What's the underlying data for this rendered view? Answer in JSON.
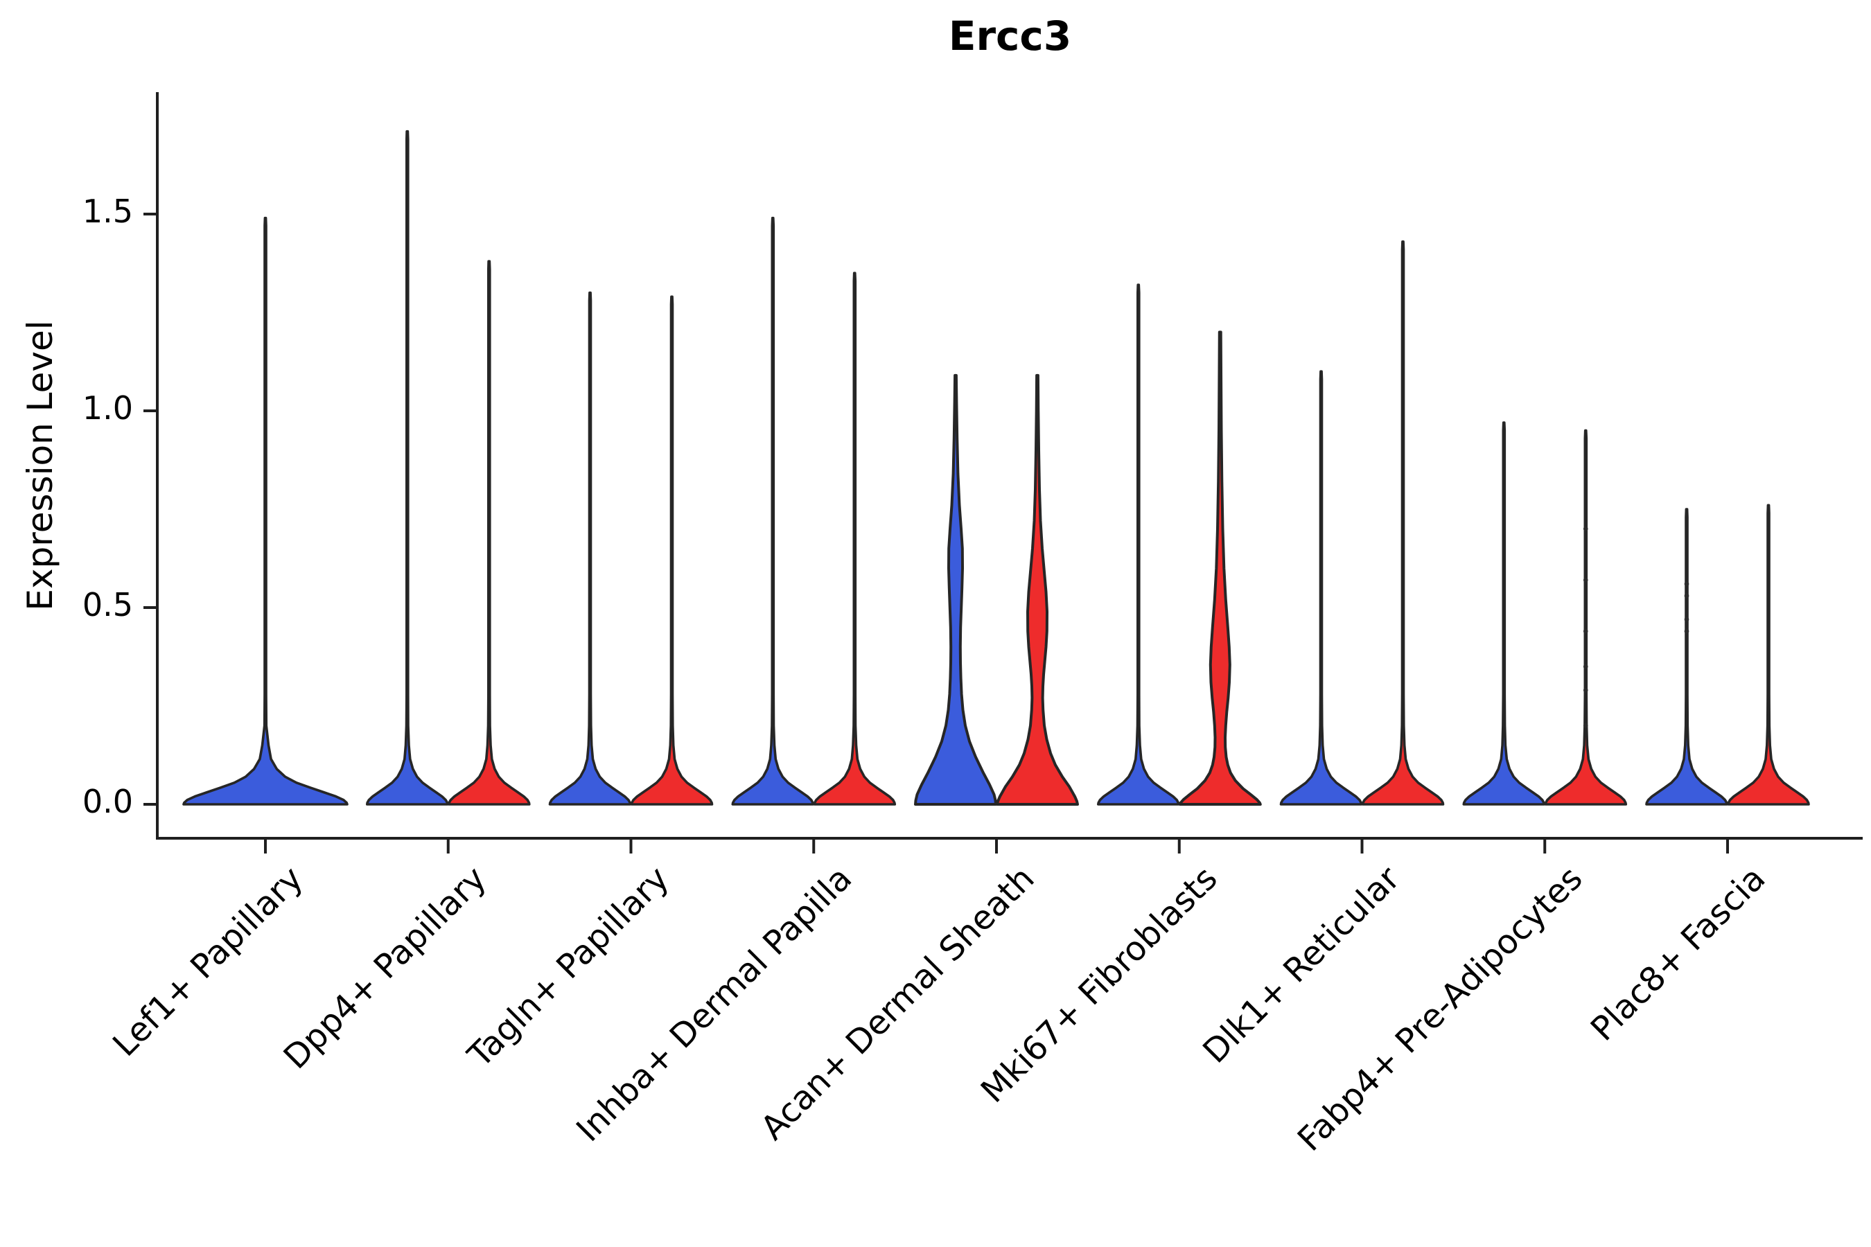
{
  "chart_data": {
    "type": "violin",
    "title": "Ercc3",
    "ylabel": "Expression Level",
    "xlabel": "",
    "grid": false,
    "legend": "none",
    "ylim": [
      -0.09,
      1.88
    ],
    "y_ticks": [
      {
        "label": "1.5",
        "value": 1.5
      },
      {
        "label": "1.0",
        "value": 1.0
      },
      {
        "label": "0.5",
        "value": 0.5
      },
      {
        "label": "0.0",
        "value": 0.0
      }
    ],
    "colors": {
      "split_left": "#3B5CDC",
      "split_right": "#EE2C2C",
      "outline": "#262626",
      "spike": "#2d2d2d",
      "axis": "#1f1f1f"
    },
    "categories": [
      {
        "label": "Lef1+ Papillary",
        "violins": [
          {
            "split": "full",
            "color": "#3B5CDC",
            "shape": "spike",
            "max_expression": 1.49,
            "base_halfwidth": 118
          }
        ]
      },
      {
        "label": "Dpp4+ Papillary",
        "violins": [
          {
            "split": "left",
            "color": "#3B5CDC",
            "shape": "spike",
            "max_expression": 1.71,
            "base_halfwidth": 58
          },
          {
            "split": "right",
            "color": "#EE2C2C",
            "shape": "spike",
            "max_expression": 1.38,
            "base_halfwidth": 58
          }
        ]
      },
      {
        "label": "Tagln+ Papillary",
        "violins": [
          {
            "split": "left",
            "color": "#3B5CDC",
            "shape": "spike",
            "max_expression": 1.3,
            "base_halfwidth": 58
          },
          {
            "split": "right",
            "color": "#EE2C2C",
            "shape": "spike",
            "max_expression": 1.29,
            "base_halfwidth": 58
          }
        ]
      },
      {
        "label": "Inhba+ Dermal Papilla",
        "violins": [
          {
            "split": "left",
            "color": "#3B5CDC",
            "shape": "spike",
            "max_expression": 1.49,
            "base_halfwidth": 58
          },
          {
            "split": "right",
            "color": "#EE2C2C",
            "shape": "spike",
            "max_expression": 1.35,
            "base_halfwidth": 58
          }
        ]
      },
      {
        "label": "Acan+ Dermal Sheath",
        "violins": [
          {
            "split": "left",
            "color": "#3B5CDC",
            "shape": "density",
            "max_expression": 1.09,
            "base_halfwidth": 58,
            "profile": [
              [
                1.09,
                0.9
              ],
              [
                1.02,
                1.4
              ],
              [
                0.93,
                2.2
              ],
              [
                0.84,
                3.4
              ],
              [
                0.76,
                5.5
              ],
              [
                0.7,
                8.0
              ],
              [
                0.65,
                9.8
              ],
              [
                0.6,
                10.0
              ],
              [
                0.55,
                9.2
              ],
              [
                0.5,
                8.2
              ],
              [
                0.45,
                7.2
              ],
              [
                0.4,
                6.8
              ],
              [
                0.36,
                7.0
              ],
              [
                0.32,
                7.6
              ],
              [
                0.28,
                8.6
              ],
              [
                0.24,
                10.5
              ],
              [
                0.2,
                14.0
              ],
              [
                0.16,
                20.0
              ],
              [
                0.12,
                29.0
              ],
              [
                0.08,
                40.0
              ],
              [
                0.05,
                49.0
              ],
              [
                0.025,
                55.5
              ],
              [
                0.01,
                57.5
              ],
              [
                0,
                58.0
              ]
            ]
          },
          {
            "split": "right",
            "color": "#EE2C2C",
            "shape": "density",
            "max_expression": 1.09,
            "base_halfwidth": 58,
            "profile": [
              [
                1.09,
                0.9
              ],
              [
                1.0,
                1.3
              ],
              [
                0.9,
                2.0
              ],
              [
                0.8,
                3.0
              ],
              [
                0.72,
                4.5
              ],
              [
                0.65,
                7.0
              ],
              [
                0.59,
                10.0
              ],
              [
                0.54,
                12.5
              ],
              [
                0.49,
                14.0
              ],
              [
                0.44,
                13.8
              ],
              [
                0.4,
                12.5
              ],
              [
                0.36,
                10.5
              ],
              [
                0.33,
                9.0
              ],
              [
                0.3,
                8.0
              ],
              [
                0.27,
                7.6
              ],
              [
                0.24,
                8.2
              ],
              [
                0.2,
                10.0
              ],
              [
                0.165,
                13.5
              ],
              [
                0.13,
                19.0
              ],
              [
                0.1,
                26.0
              ],
              [
                0.07,
                36.0
              ],
              [
                0.045,
                46.0
              ],
              [
                0.02,
                54.0
              ],
              [
                0.008,
                57.0
              ],
              [
                0,
                58.0
              ]
            ]
          }
        ]
      },
      {
        "label": "Mki67+ Fibroblasts",
        "violins": [
          {
            "split": "left",
            "color": "#3B5CDC",
            "shape": "spike",
            "max_expression": 1.32,
            "base_halfwidth": 58
          },
          {
            "split": "right",
            "color": "#EE2C2C",
            "shape": "density",
            "max_expression": 1.2,
            "base_halfwidth": 58,
            "profile": [
              [
                1.2,
                0.9
              ],
              [
                1.1,
                1.2
              ],
              [
                0.95,
                1.8
              ],
              [
                0.82,
                2.6
              ],
              [
                0.7,
                3.8
              ],
              [
                0.6,
                5.5
              ],
              [
                0.52,
                8.0
              ],
              [
                0.45,
                11.0
              ],
              [
                0.4,
                13.0
              ],
              [
                0.355,
                14.0
              ],
              [
                0.31,
                13.2
              ],
              [
                0.27,
                11.5
              ],
              [
                0.235,
                9.5
              ],
              [
                0.2,
                8.0
              ],
              [
                0.17,
                7.2
              ],
              [
                0.145,
                7.4
              ],
              [
                0.12,
                8.8
              ],
              [
                0.1,
                11.0
              ],
              [
                0.08,
                15.0
              ],
              [
                0.06,
                22.0
              ],
              [
                0.04,
                33.0
              ],
              [
                0.025,
                44.0
              ],
              [
                0.012,
                53.0
              ],
              [
                0.004,
                57.0
              ],
              [
                0,
                58.0
              ]
            ]
          }
        ]
      },
      {
        "label": "Dlk1+ Reticular",
        "violins": [
          {
            "split": "left",
            "color": "#3B5CDC",
            "shape": "spike",
            "max_expression": 1.1,
            "base_halfwidth": 58
          },
          {
            "split": "right",
            "color": "#EE2C2C",
            "shape": "spike",
            "max_expression": 1.43,
            "base_halfwidth": 58
          }
        ]
      },
      {
        "label": "Fabp4+ Pre-Adipocytes",
        "violins": [
          {
            "split": "left",
            "color": "#3B5CDC",
            "shape": "spike",
            "max_expression": 0.97,
            "base_halfwidth": 58
          },
          {
            "split": "right",
            "color": "#EE2C2C",
            "shape": "spike",
            "max_expression": 0.95,
            "base_halfwidth": 58,
            "dots": [
              0.7,
              0.57,
              0.44,
              0.35,
              0.29,
              0.2
            ]
          }
        ]
      },
      {
        "label": "Plac8+ Fascia",
        "violins": [
          {
            "split": "left",
            "color": "#3B5CDC",
            "shape": "spike",
            "max_expression": 0.75,
            "base_halfwidth": 58,
            "dots": [
              0.56,
              0.53,
              0.47,
              0.44
            ]
          },
          {
            "split": "right",
            "color": "#EE2C2C",
            "shape": "spike",
            "max_expression": 0.76,
            "base_halfwidth": 58
          }
        ]
      }
    ]
  }
}
